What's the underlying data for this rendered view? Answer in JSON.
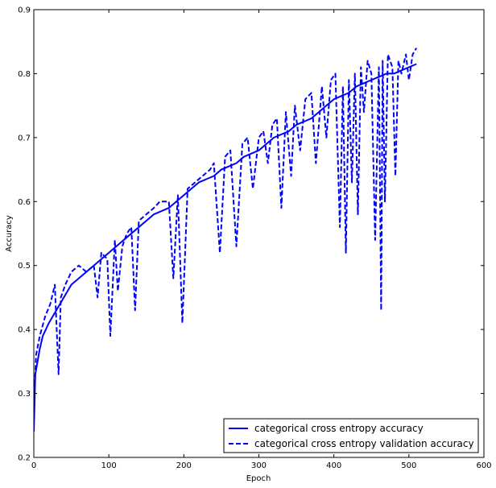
{
  "chart_data": {
    "type": "line",
    "title": "",
    "xlabel": "Epoch",
    "ylabel": "Accuracy",
    "xlim": [
      0,
      600
    ],
    "ylim": [
      0.2,
      0.9
    ],
    "xticks": [
      0,
      100,
      200,
      300,
      400,
      500,
      600
    ],
    "yticks": [
      0.2,
      0.3,
      0.4,
      0.5,
      0.6,
      0.7,
      0.8,
      0.9
    ],
    "grid": false,
    "legend_position": "bottom-right",
    "series": [
      {
        "name": "categorical cross entropy accuracy",
        "color": "#0000ff",
        "style": "solid",
        "x": [
          0,
          2,
          5,
          8,
          12,
          16,
          20,
          25,
          30,
          40,
          50,
          60,
          70,
          80,
          90,
          100,
          110,
          120,
          130,
          140,
          150,
          160,
          170,
          180,
          190,
          200,
          210,
          220,
          230,
          240,
          250,
          260,
          270,
          280,
          290,
          300,
          310,
          320,
          330,
          340,
          350,
          360,
          370,
          380,
          390,
          400,
          410,
          420,
          430,
          440,
          450,
          460,
          470,
          480,
          490,
          500,
          510
        ],
        "y": [
          0.24,
          0.33,
          0.35,
          0.37,
          0.39,
          0.4,
          0.41,
          0.42,
          0.43,
          0.45,
          0.47,
          0.48,
          0.49,
          0.5,
          0.51,
          0.52,
          0.53,
          0.54,
          0.55,
          0.56,
          0.57,
          0.58,
          0.585,
          0.59,
          0.6,
          0.61,
          0.62,
          0.63,
          0.635,
          0.64,
          0.65,
          0.655,
          0.66,
          0.67,
          0.675,
          0.68,
          0.69,
          0.7,
          0.705,
          0.71,
          0.72,
          0.725,
          0.73,
          0.74,
          0.75,
          0.76,
          0.765,
          0.77,
          0.78,
          0.785,
          0.79,
          0.795,
          0.8,
          0.8,
          0.805,
          0.81,
          0.815
        ]
      },
      {
        "name": "categorical cross entropy validation accuracy",
        "color": "#0000ff",
        "style": "dashed",
        "x": [
          0,
          3,
          8,
          15,
          22,
          28,
          33,
          36,
          42,
          50,
          60,
          70,
          80,
          85,
          90,
          98,
          102,
          108,
          112,
          118,
          124,
          130,
          135,
          140,
          150,
          160,
          168,
          180,
          186,
          192,
          198,
          205,
          215,
          225,
          235,
          240,
          248,
          255,
          262,
          270,
          278,
          285,
          292,
          300,
          306,
          312,
          318,
          324,
          330,
          336,
          343,
          348,
          355,
          362,
          370,
          376,
          384,
          390,
          396,
          402,
          408,
          412,
          416,
          420,
          424,
          428,
          432,
          436,
          440,
          445,
          450,
          455,
          460,
          463,
          465,
          468,
          472,
          478,
          482,
          486,
          490,
          496,
          500,
          505,
          510
        ],
        "y": [
          0.28,
          0.36,
          0.39,
          0.42,
          0.44,
          0.47,
          0.33,
          0.45,
          0.47,
          0.49,
          0.5,
          0.49,
          0.5,
          0.45,
          0.52,
          0.51,
          0.39,
          0.54,
          0.46,
          0.53,
          0.55,
          0.56,
          0.43,
          0.57,
          0.58,
          0.59,
          0.6,
          0.6,
          0.48,
          0.61,
          0.41,
          0.62,
          0.63,
          0.64,
          0.65,
          0.66,
          0.52,
          0.67,
          0.68,
          0.53,
          0.69,
          0.7,
          0.62,
          0.7,
          0.71,
          0.66,
          0.72,
          0.73,
          0.59,
          0.74,
          0.64,
          0.75,
          0.68,
          0.76,
          0.77,
          0.66,
          0.78,
          0.7,
          0.79,
          0.8,
          0.56,
          0.78,
          0.52,
          0.79,
          0.63,
          0.8,
          0.58,
          0.81,
          0.74,
          0.82,
          0.8,
          0.54,
          0.81,
          0.43,
          0.82,
          0.6,
          0.83,
          0.81,
          0.64,
          0.82,
          0.8,
          0.83,
          0.79,
          0.83,
          0.84
        ]
      }
    ]
  }
}
